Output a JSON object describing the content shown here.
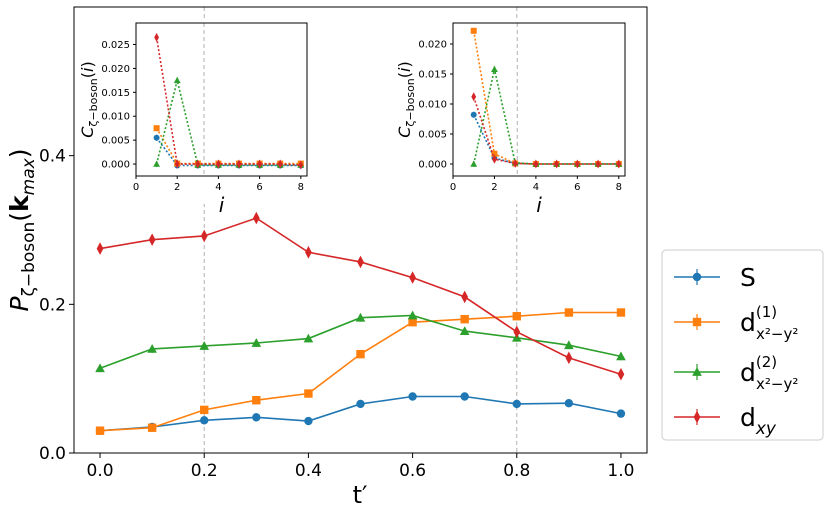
{
  "chart_data": [
    {
      "type": "line",
      "xlabel": "t′",
      "ylabel": "P_{ζ−boson}(k_max)",
      "xlim": [
        -0.05,
        1.05
      ],
      "ylim": [
        0.0,
        0.6
      ],
      "x_ticks": [
        0.0,
        0.2,
        0.4,
        0.6,
        0.8,
        1.0
      ],
      "x_tick_labels": [
        "0.0",
        "0.2",
        "0.4",
        "0.6",
        "0.8",
        "1.0"
      ],
      "y_ticks": [
        0.0,
        0.2,
        0.4
      ],
      "y_tick_labels": [
        "0.0",
        "0.2",
        "0.4"
      ],
      "vlines": [
        0.2,
        0.8
      ],
      "x": [
        0.0,
        0.1,
        0.2,
        0.3,
        0.4,
        0.5,
        0.6,
        0.7,
        0.8,
        0.9,
        1.0
      ],
      "series": [
        {
          "name": "S",
          "color": "#1f77b4",
          "marker": "circle",
          "values": [
            0.03,
            0.035,
            0.044,
            0.048,
            0.043,
            0.066,
            0.076,
            0.076,
            0.066,
            0.067,
            0.053
          ]
        },
        {
          "name": "d(1) x²−y²",
          "color": "#ff7f0e",
          "marker": "square",
          "values": [
            0.03,
            0.034,
            0.058,
            0.071,
            0.08,
            0.133,
            0.176,
            0.18,
            0.184,
            0.189,
            0.189
          ]
        },
        {
          "name": "d(2) x²−y²",
          "color": "#2ca02c",
          "marker": "triangle",
          "values": [
            0.114,
            0.14,
            0.144,
            0.148,
            0.154,
            0.182,
            0.185,
            0.164,
            0.155,
            0.145,
            0.13
          ]
        },
        {
          "name": "d xy",
          "color": "#d62728",
          "marker": "diamond",
          "values": [
            0.275,
            0.287,
            0.292,
            0.316,
            0.27,
            0.257,
            0.236,
            0.21,
            0.163,
            0.128,
            0.106
          ]
        }
      ],
      "legend": {
        "placement": "outside-right",
        "entries": [
          {
            "main": "S",
            "sup": "",
            "sub": ""
          },
          {
            "main": "d",
            "sup": "(1)",
            "sub": "x²−y²"
          },
          {
            "main": "d",
            "sup": "(2)",
            "sub": "x²−y²"
          },
          {
            "main": "d",
            "sup": "",
            "sub": "xy"
          }
        ]
      }
    },
    {
      "type": "line",
      "placement": "inset-top-left",
      "xlabel": "i",
      "ylabel": "C_{ζ−boson}(i)",
      "xlim": [
        0,
        8.3
      ],
      "ylim": [
        -0.0025,
        0.0295
      ],
      "x_ticks": [
        0,
        2,
        4,
        6,
        8
      ],
      "x_tick_labels": [
        "0",
        "2",
        "4",
        "6",
        "8"
      ],
      "y_ticks": [
        0.0,
        0.005,
        0.01,
        0.015,
        0.02,
        0.025
      ],
      "y_tick_labels": [
        "0.000",
        "0.005",
        "0.010",
        "0.015",
        "0.020",
        "0.025"
      ],
      "vlines": [
        3.3
      ],
      "x": [
        1,
        2,
        3,
        4,
        5,
        6,
        7,
        8
      ],
      "series": [
        {
          "name": "S",
          "color": "#1f77b4",
          "marker": "circle",
          "values": [
            0.0055,
            -0.0003,
            -0.0003,
            -0.0003,
            -0.0003,
            -0.0003,
            -0.0003,
            -0.0003
          ]
        },
        {
          "name": "d(1)",
          "color": "#ff7f0e",
          "marker": "square",
          "values": [
            0.0075,
            0.0001,
            0.0001,
            0.0001,
            0.0001,
            0.0001,
            0.0001,
            0.0001
          ]
        },
        {
          "name": "d(2)",
          "color": "#2ca02c",
          "marker": "triangle",
          "values": [
            0.0,
            0.0175,
            -0.0002,
            -0.0002,
            -0.0002,
            -0.0002,
            -0.0002,
            -0.0002
          ]
        },
        {
          "name": "d xy",
          "color": "#d62728",
          "marker": "diamond",
          "values": [
            0.0265,
            0.0,
            0.0,
            0.0,
            0.0,
            0.0,
            0.0,
            -0.0002
          ]
        }
      ]
    },
    {
      "type": "line",
      "placement": "inset-top-right",
      "xlabel": "i",
      "ylabel": "C_{ζ−boson}(i)",
      "xlim": [
        0,
        8.3
      ],
      "ylim": [
        -0.002,
        0.0235
      ],
      "x_ticks": [
        0,
        2,
        4,
        6,
        8
      ],
      "x_tick_labels": [
        "0",
        "2",
        "4",
        "6",
        "8"
      ],
      "y_ticks": [
        0.0,
        0.005,
        0.01,
        0.015,
        0.02
      ],
      "y_tick_labels": [
        "0.000",
        "0.005",
        "0.010",
        "0.015",
        "0.020"
      ],
      "vlines": [
        3.1
      ],
      "x": [
        1,
        2,
        3,
        4,
        5,
        6,
        7,
        8
      ],
      "series": [
        {
          "name": "S",
          "color": "#1f77b4",
          "marker": "circle",
          "values": [
            0.0082,
            0.001,
            0.0001,
            0.0,
            0.0,
            0.0,
            0.0,
            0.0
          ]
        },
        {
          "name": "d(1)",
          "color": "#ff7f0e",
          "marker": "square",
          "values": [
            0.0222,
            0.0017,
            0.0001,
            0.0,
            0.0,
            0.0,
            0.0,
            0.0
          ]
        },
        {
          "name": "d(2)",
          "color": "#2ca02c",
          "marker": "triangle",
          "values": [
            0.0,
            0.0158,
            0.0002,
            0.0,
            0.0,
            0.0,
            0.0,
            0.0
          ]
        },
        {
          "name": "d xy",
          "color": "#d62728",
          "marker": "diamond",
          "values": [
            0.0112,
            0.0008,
            0.0001,
            0.0,
            0.0,
            0.0,
            0.0,
            0.0
          ]
        }
      ]
    }
  ]
}
